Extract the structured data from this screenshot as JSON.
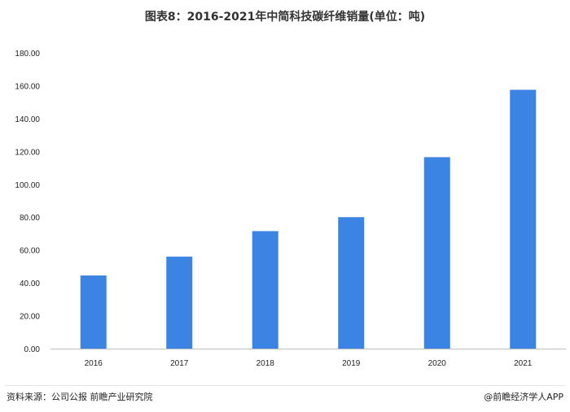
{
  "header": {
    "title": "图表8：2016-2021年中简科技碳纤维销量(单位：吨)"
  },
  "footer": {
    "source": "资料来源：公司公报 前瞻产业研究院",
    "credit": "@前瞻经济学人APP"
  },
  "colors": {
    "bar": "#3b84e3",
    "grid": "#e3e3e3",
    "axis": "#bfbfbf"
  },
  "chart_data": {
    "type": "bar",
    "title": "图表8：2016-2021年中简科技碳纤维销量(单位：吨)",
    "categories": [
      "2016",
      "2017",
      "2018",
      "2019",
      "2020",
      "2021"
    ],
    "values": [
      44.5,
      56,
      71.5,
      80,
      116.5,
      157.5
    ],
    "yticks": [
      "0.00",
      "20.00",
      "40.00",
      "60.00",
      "80.00",
      "100.00",
      "120.00",
      "140.00",
      "160.00",
      "180.00"
    ],
    "ylim": [
      0,
      180
    ],
    "grid": false,
    "xlabel": "",
    "ylabel": ""
  }
}
